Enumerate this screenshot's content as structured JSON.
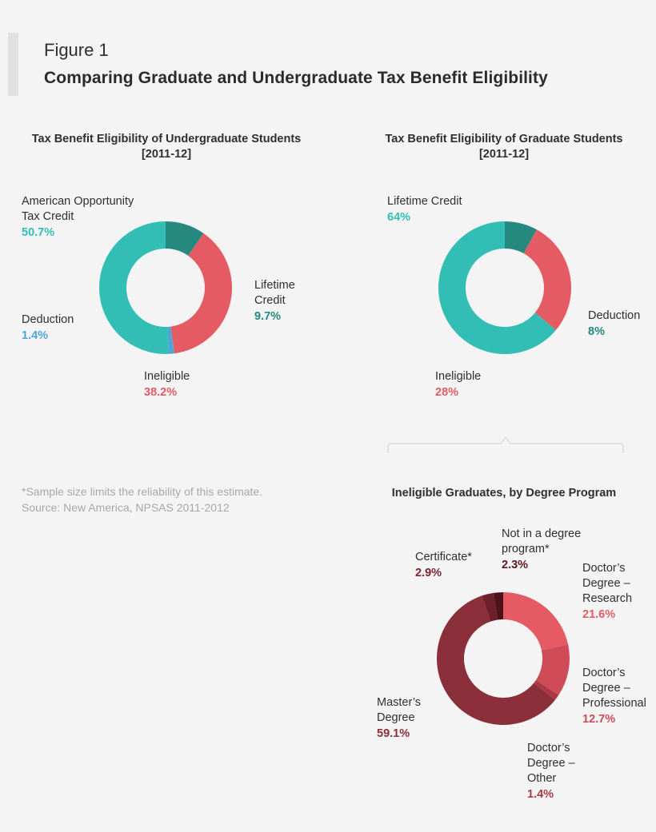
{
  "figure": {
    "label": "Figure 1",
    "title": "Comparing Graduate and Undergraduate Tax Benefit Eligibility"
  },
  "footnote": {
    "line1": "*Sample size limits the reliability of this estimate.",
    "line2": "Source: New America, NPSAS 2011-2012"
  },
  "colors": {
    "teal": "#32beb5",
    "dark_teal": "#25897f",
    "blue": "#4ca6d8",
    "coral": "#e45b64",
    "rose": "#cf4b57",
    "maroon": "#8b2f3a",
    "burgundy": "#7a2630",
    "dark_burgundy": "#5c1720"
  },
  "chart_data": [
    {
      "type": "pie",
      "title_line1": "Tax Benefit Eligibility of Undergraduate Students",
      "title_line2": "[2011-12]",
      "slices": [
        {
          "label": "Lifetime Credit",
          "label_lines": [
            "Lifetime",
            "Credit"
          ],
          "value": 9.7,
          "value_text": "9.7%",
          "color": "#25897f",
          "text_color": "#25897f"
        },
        {
          "label": "Ineligible",
          "label_lines": [
            "Ineligible"
          ],
          "value": 38.2,
          "value_text": "38.2%",
          "color": "#e45b64",
          "text_color": "#e45b64"
        },
        {
          "label": "Deduction",
          "label_lines": [
            "Deduction"
          ],
          "value": 1.4,
          "value_text": "1.4%",
          "color": "#4ca6d8",
          "text_color": "#4ca6d8"
        },
        {
          "label": "American Opportunity Tax Credit",
          "label_lines": [
            "American Opportunity",
            "Tax Credit"
          ],
          "value": 50.7,
          "value_text": "50.7%",
          "color": "#32beb5",
          "text_color": "#32beb5"
        }
      ]
    },
    {
      "type": "pie",
      "title_line1": "Tax Benefit Eligibility of Graduate Students",
      "title_line2": "[2011-12]",
      "slices": [
        {
          "label": "Deduction",
          "label_lines": [
            "Deduction"
          ],
          "value": 8,
          "value_text": "8%",
          "color": "#25897f",
          "text_color": "#25897f"
        },
        {
          "label": "Ineligible",
          "label_lines": [
            "Ineligible"
          ],
          "value": 28,
          "value_text": "28%",
          "color": "#e45b64",
          "text_color": "#e45b64"
        },
        {
          "label": "Lifetime Credit",
          "label_lines": [
            "Lifetime Credit"
          ],
          "value": 64,
          "value_text": "64%",
          "color": "#32beb5",
          "text_color": "#32beb5"
        }
      ]
    },
    {
      "type": "pie",
      "title_line1": "Ineligible Graduates, by Degree Program",
      "title_line2": "",
      "slices": [
        {
          "label": "Doctor's Degree – Research",
          "label_lines": [
            "Doctor’s",
            "Degree –",
            "Research"
          ],
          "value": 21.6,
          "value_text": "21.6%",
          "color": "#e45b64",
          "text_color": "#e45b64"
        },
        {
          "label": "Doctor's Degree – Professional",
          "label_lines": [
            "Doctor’s",
            "Degree –",
            "Professional"
          ],
          "value": 12.7,
          "value_text": "12.7%",
          "color": "#cf4b57",
          "text_color": "#cf4b57"
        },
        {
          "label": "Doctor's Degree – Other",
          "label_lines": [
            "Doctor’s",
            "Degree –",
            "Other"
          ],
          "value": 1.4,
          "value_text": "1.4%",
          "color": "#a83a45",
          "text_color": "#a83a45"
        },
        {
          "label": "Master's Degree",
          "label_lines": [
            "Master’s",
            "Degree"
          ],
          "value": 59.1,
          "value_text": "59.1%",
          "color": "#8b2f3a",
          "text_color": "#8b2f3a"
        },
        {
          "label": "Certificate*",
          "label_lines": [
            "Certificate*"
          ],
          "value": 2.9,
          "value_text": "2.9%",
          "color": "#6e1f29",
          "text_color": "#7a2630"
        },
        {
          "label": "Not in a degree program*",
          "label_lines": [
            "Not in a degree",
            "program*"
          ],
          "value": 2.3,
          "value_text": "2.3%",
          "color": "#4e121a",
          "text_color": "#5c1720"
        }
      ]
    }
  ]
}
